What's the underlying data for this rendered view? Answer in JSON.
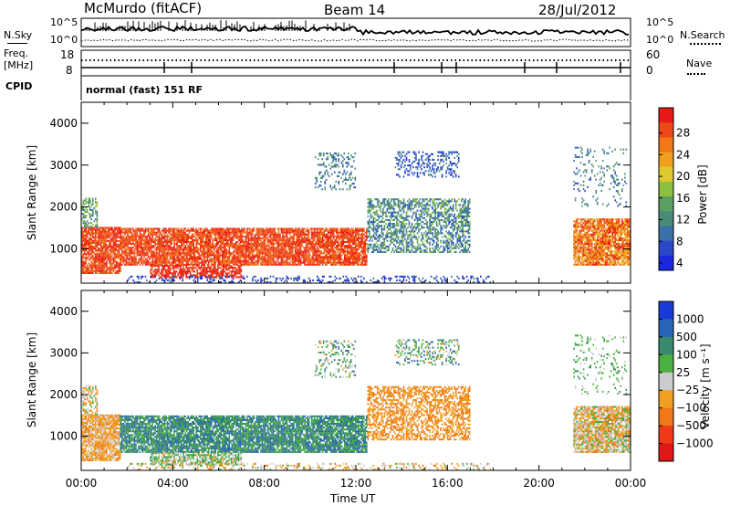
{
  "header": {
    "station": "McMurdo (fitACF)",
    "beam": "Beam 14",
    "date": "28/Jul/2012"
  },
  "top_panels": {
    "nsky_label": "N.Sky",
    "nsky_ticks": [
      "10^5",
      "10^0"
    ],
    "nsearch_label": "N.Search",
    "nsearch_ticks": [
      "10^5",
      "10^0"
    ],
    "freq_label_1": "Freq.",
    "freq_label_2": "[MHz]",
    "freq_ticks": [
      "18",
      "8"
    ],
    "nave_label": "Nave",
    "nave_ticks": [
      "60",
      "0"
    ],
    "cpid_label": "CPID",
    "cpid_value": "normal (fast) 151 RF"
  },
  "chart_data": [
    {
      "type": "heatmap",
      "name": "power",
      "ylabel": "Slant Range [km]",
      "ylim": [
        180,
        4500
      ],
      "yticks": [
        "1000",
        "2000",
        "3000",
        "4000"
      ],
      "xlim": [
        0,
        24
      ],
      "colorbar_label": "Power [dB]",
      "colorbar_ticks": [
        "28",
        "24",
        "20",
        "16",
        "12",
        "8",
        "4"
      ],
      "colors": [
        "#1a28e0",
        "#2a48c8",
        "#3a72a8",
        "#4a8a78",
        "#5aa060",
        "#8cc040",
        "#e0c830",
        "#f0a020",
        "#f07818",
        "#ee4818",
        "#e81818"
      ]
    },
    {
      "type": "heatmap",
      "name": "velocity",
      "ylabel": "Slant Range [km]",
      "ylim": [
        180,
        4500
      ],
      "yticks": [
        "1000",
        "2000",
        "3000",
        "4000"
      ],
      "xlim": [
        0,
        24
      ],
      "colorbar_label": "Velocity [m s⁻¹]",
      "colorbar_ticks": [
        "1000",
        "500",
        "100",
        "25",
        "−25",
        "−100",
        "−500",
        "−1000"
      ],
      "colors": [
        "#1a3ad8",
        "#2a64b8",
        "#3a8a70",
        "#4ab040",
        "#cccccc",
        "#f0a020",
        "#f07818",
        "#ee3a18",
        "#e01818"
      ]
    }
  ],
  "x_axis": {
    "ticks": [
      "00:00",
      "04:00",
      "08:00",
      "12:00",
      "16:00",
      "20:00",
      "00:00"
    ],
    "label": "Time UT"
  }
}
